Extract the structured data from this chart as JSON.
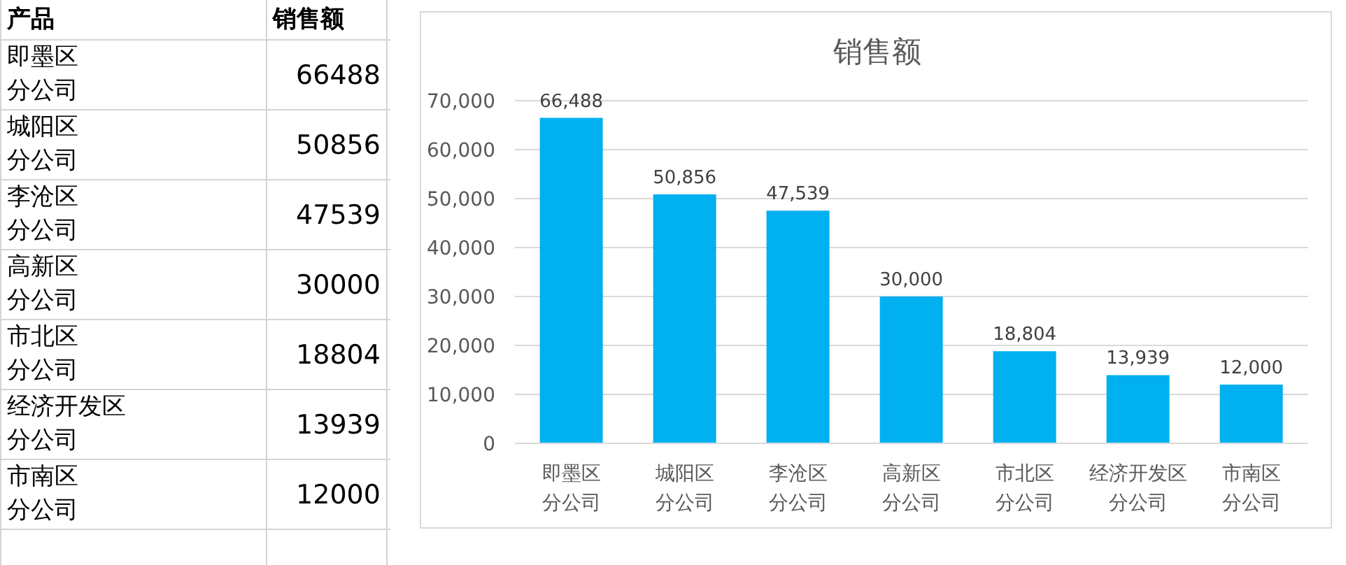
{
  "chart_data": [
    {
      "type": "other",
      "annotations": [
        "产品",
        "销售额"
      ],
      "categories": [
        "即墨区分公司",
        "城阳区分公司",
        "李沧区分公司",
        "高新区分公司",
        "市北区分公司",
        "经济开发区分公司",
        "市南区分公司"
      ],
      "values": [
        66488,
        50856,
        47539,
        30000,
        18804,
        13939,
        12000
      ],
      "data_labels": true
    },
    {
      "type": "bar",
      "title": "销售额",
      "categories": [
        "即墨区分公司",
        "城阳区分公司",
        "李沧区分公司",
        "高新区分公司",
        "市北区分公司",
        "经济开发区分公司",
        "市南区分公司"
      ],
      "values": [
        66488,
        50856,
        47539,
        30000,
        18804,
        13939,
        12000
      ],
      "value_labels": [
        "66,488",
        "50,856",
        "47,539",
        "30,000",
        "18,804",
        "13,939",
        "12,000"
      ],
      "color": "#00b0f0",
      "ylim": [
        0,
        70000
      ],
      "yticks": [
        {
          "value": 0,
          "label": "0"
        },
        {
          "value": 10000,
          "label": "10,000"
        },
        {
          "value": 20000,
          "label": "20,000"
        },
        {
          "value": 30000,
          "label": "30,000"
        },
        {
          "value": 40000,
          "label": "40,000"
        },
        {
          "value": 50000,
          "label": "50,000"
        },
        {
          "value": 60000,
          "label": "60,000"
        },
        {
          "value": 70000,
          "label": "70,000"
        }
      ],
      "grid": "y"
    }
  ]
}
